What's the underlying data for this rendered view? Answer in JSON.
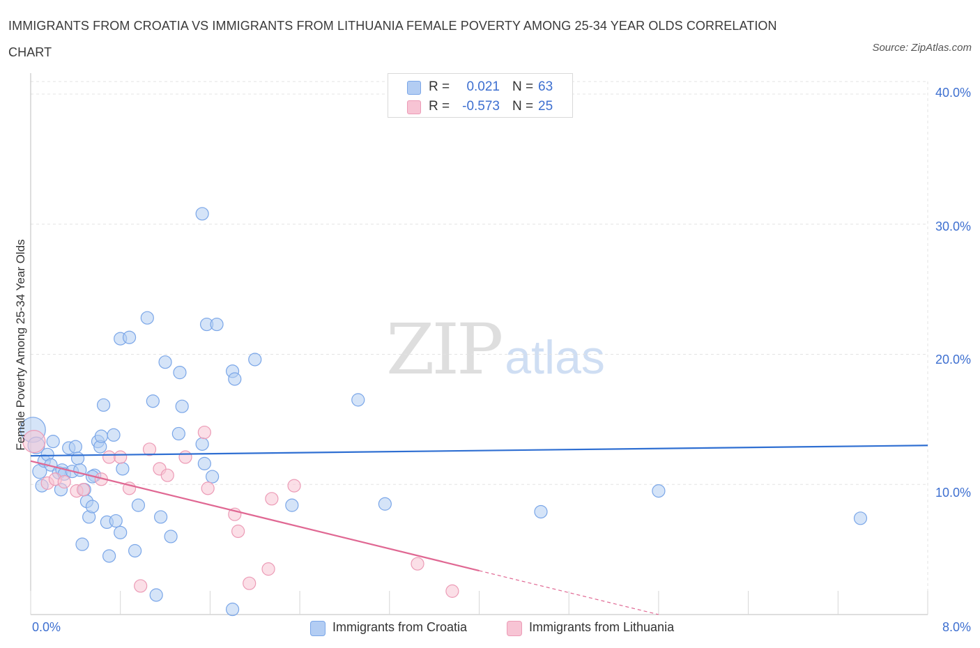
{
  "chart_data": {
    "type": "scatter",
    "title": "IMMIGRANTS FROM CROATIA VS IMMIGRANTS FROM LITHUANIA FEMALE POVERTY AMONG 25-34 YEAR OLDS CORRELATION CHART",
    "source": "Source: ZipAtlas.com",
    "xlabel": "",
    "ylabel": "Female Poverty Among 25-34 Year Olds",
    "xlim": [
      0,
      8
    ],
    "ylim": [
      0,
      40
    ],
    "x_tick_labels": {
      "left": "0.0%",
      "right": "8.0%"
    },
    "y_ticks": [
      {
        "value": 10,
        "label": "10.0%"
      },
      {
        "value": 20,
        "label": "20.0%"
      },
      {
        "value": 30,
        "label": "30.0%"
      },
      {
        "value": 40,
        "label": "40.0%"
      }
    ],
    "grid": true,
    "watermark": {
      "zip": "ZIP",
      "atlas": "atlas"
    },
    "series": [
      {
        "name": "Immigrants from Croatia",
        "color": "#7aa6e8",
        "fill": "#b3cdf3",
        "line_color": "#2f6fd2",
        "legend_r_label": "R =",
        "r": "0.021",
        "legend_n_label": "N =",
        "n": "63",
        "trend": {
          "x": [
            0,
            8
          ],
          "y": [
            12.2,
            13.0
          ],
          "dashed_from": null
        },
        "points": [
          [
            0.02,
            14.2,
            18
          ],
          [
            0.05,
            13.0,
            12
          ],
          [
            0.08,
            11.0,
            10
          ],
          [
            0.1,
            9.9,
            9
          ],
          [
            0.12,
            11.8,
            9
          ],
          [
            0.15,
            12.3,
            9
          ],
          [
            0.18,
            11.5,
            9
          ],
          [
            0.2,
            13.3,
            9
          ],
          [
            0.25,
            10.9,
            9
          ],
          [
            0.27,
            9.6,
            9
          ],
          [
            0.28,
            11.1,
            9
          ],
          [
            0.3,
            10.8,
            9
          ],
          [
            0.34,
            12.8,
            9
          ],
          [
            0.37,
            11.0,
            9
          ],
          [
            0.4,
            12.9,
            9
          ],
          [
            0.42,
            12.0,
            9
          ],
          [
            0.44,
            11.1,
            9
          ],
          [
            0.46,
            5.4,
            9
          ],
          [
            0.48,
            9.6,
            9
          ],
          [
            0.5,
            8.7,
            9
          ],
          [
            0.52,
            7.5,
            9
          ],
          [
            0.55,
            8.3,
            9
          ],
          [
            0.57,
            10.7,
            9
          ],
          [
            0.6,
            13.3,
            9
          ],
          [
            0.62,
            12.9,
            9
          ],
          [
            0.63,
            13.7,
            9
          ],
          [
            0.65,
            16.1,
            9
          ],
          [
            0.68,
            7.1,
            9
          ],
          [
            0.7,
            4.5,
            9
          ],
          [
            0.74,
            13.8,
            9
          ],
          [
            0.76,
            7.2,
            9
          ],
          [
            0.8,
            6.3,
            9
          ],
          [
            0.8,
            21.2,
            9
          ],
          [
            0.82,
            11.2,
            9
          ],
          [
            0.88,
            21.3,
            9
          ],
          [
            0.93,
            4.9,
            9
          ],
          [
            0.96,
            8.4,
            9
          ],
          [
            1.04,
            22.8,
            9
          ],
          [
            1.09,
            16.4,
            9
          ],
          [
            1.12,
            1.5,
            9
          ],
          [
            1.16,
            7.5,
            9
          ],
          [
            1.2,
            19.4,
            9
          ],
          [
            1.25,
            6.0,
            9
          ],
          [
            1.32,
            13.9,
            9
          ],
          [
            1.33,
            18.6,
            9
          ],
          [
            1.35,
            16.0,
            9
          ],
          [
            1.53,
            13.1,
            9
          ],
          [
            1.55,
            11.6,
            9
          ],
          [
            1.53,
            30.8,
            9
          ],
          [
            1.57,
            22.3,
            9
          ],
          [
            1.62,
            10.6,
            9
          ],
          [
            1.66,
            22.3,
            9
          ],
          [
            1.8,
            0.4,
            9
          ],
          [
            1.8,
            18.7,
            9
          ],
          [
            1.82,
            18.1,
            9
          ],
          [
            2.0,
            19.6,
            9
          ],
          [
            2.33,
            8.4,
            9
          ],
          [
            2.92,
            16.5,
            9
          ],
          [
            3.16,
            8.5,
            9
          ],
          [
            4.55,
            7.9,
            9
          ],
          [
            5.6,
            9.5,
            9
          ],
          [
            7.4,
            7.4,
            9
          ],
          [
            0.55,
            10.6,
            9
          ]
        ]
      },
      {
        "name": "Immigrants from Lithuania",
        "color": "#ec9bb6",
        "fill": "#f7c4d4",
        "line_color": "#e06893",
        "legend_r_label": "R =",
        "r": "-0.573",
        "legend_n_label": "N =",
        "n": "25",
        "trend": {
          "x": [
            0,
            5.6
          ],
          "y": [
            11.8,
            0.0
          ],
          "dashed_from": 4.0
        },
        "points": [
          [
            0.03,
            13.3,
            16
          ],
          [
            0.15,
            10.1,
            9
          ],
          [
            0.22,
            10.4,
            9
          ],
          [
            0.3,
            10.2,
            9
          ],
          [
            0.41,
            9.5,
            9
          ],
          [
            0.47,
            9.6,
            9
          ],
          [
            0.63,
            10.4,
            9
          ],
          [
            0.7,
            12.1,
            9
          ],
          [
            0.8,
            12.1,
            9
          ],
          [
            0.88,
            9.7,
            9
          ],
          [
            0.98,
            2.2,
            9
          ],
          [
            1.06,
            12.7,
            9
          ],
          [
            1.15,
            11.2,
            9
          ],
          [
            1.22,
            10.7,
            9
          ],
          [
            1.38,
            12.1,
            9
          ],
          [
            1.55,
            14.0,
            9
          ],
          [
            1.58,
            9.7,
            9
          ],
          [
            1.82,
            7.7,
            9
          ],
          [
            1.85,
            6.4,
            9
          ],
          [
            1.95,
            2.4,
            9
          ],
          [
            2.12,
            3.5,
            9
          ],
          [
            2.15,
            8.9,
            9
          ],
          [
            2.35,
            9.9,
            9
          ],
          [
            3.45,
            3.9,
            9
          ],
          [
            3.76,
            1.8,
            9
          ]
        ]
      }
    ]
  }
}
